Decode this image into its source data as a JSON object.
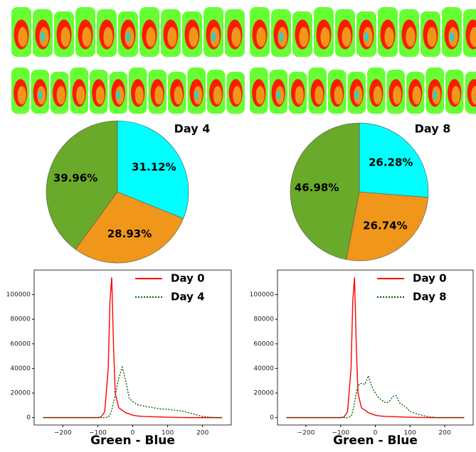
{
  "chart_data": [
    {
      "type": "pie",
      "title": "Day 4",
      "categories": [
        null,
        null,
        null
      ],
      "values": [
        31.12,
        28.93,
        39.96
      ],
      "value_labels": [
        "31.12%",
        "28.93%",
        "39.96%"
      ],
      "colors": [
        "#00ffff",
        "#f0961a",
        "#6aaa2a"
      ]
    },
    {
      "type": "pie",
      "title": "Day 8",
      "categories": [
        null,
        null,
        null
      ],
      "values": [
        26.28,
        26.74,
        46.98
      ],
      "value_labels": [
        "26.28%",
        "26.74%",
        "46.98%"
      ],
      "colors": [
        "#00ffff",
        "#f0961a",
        "#6aaa2a"
      ]
    },
    {
      "type": "line",
      "xlabel": "Green - Blue",
      "legend": "upper right",
      "x": [
        -256,
        -200,
        -150,
        -100,
        -90,
        -80,
        -70,
        -65,
        -60,
        -55,
        -50,
        -40,
        -30,
        -20,
        -10,
        0,
        10,
        20,
        30,
        40,
        50,
        60,
        70,
        80,
        90,
        100,
        120,
        140,
        160,
        180,
        200,
        220,
        240,
        256
      ],
      "series": [
        {
          "name": "Day 0",
          "color": "#ff0000",
          "linestyle": "solid",
          "values": [
            0,
            0,
            0,
            0,
            500,
            5000,
            40000,
            95000,
            114000,
            60000,
            20000,
            8000,
            6000,
            4000,
            3000,
            2000,
            1500,
            1200,
            1000,
            900,
            800,
            700,
            600,
            500,
            400,
            300,
            200,
            100,
            0,
            0,
            0,
            0,
            0,
            0
          ]
        },
        {
          "name": "Day 4",
          "color": "#006400",
          "linestyle": "dotted",
          "values": [
            0,
            0,
            0,
            0,
            0,
            0,
            500,
            2000,
            6000,
            12000,
            18000,
            32000,
            41000,
            30000,
            16000,
            13000,
            11000,
            10000,
            9500,
            9000,
            8500,
            8000,
            7500,
            7000,
            7000,
            6800,
            6000,
            5500,
            4000,
            2500,
            1000,
            300,
            0,
            0
          ]
        }
      ],
      "xlim": [
        -282,
        282
      ],
      "xticks": [
        {
          "value": -200,
          "label": "−200"
        },
        {
          "value": -100,
          "label": "−100"
        },
        0,
        100,
        200
      ],
      "ylim": [
        -6000,
        120000
      ],
      "yticks": [
        0,
        20000,
        40000,
        60000,
        80000,
        100000
      ]
    },
    {
      "type": "line",
      "xlabel": "Green - Blue",
      "legend": "upper right",
      "x": [
        -256,
        -200,
        -150,
        -100,
        -90,
        -80,
        -70,
        -65,
        -60,
        -55,
        -50,
        -40,
        -30,
        -20,
        -10,
        0,
        10,
        20,
        30,
        40,
        50,
        60,
        70,
        80,
        90,
        100,
        120,
        140,
        160,
        180,
        200,
        220,
        240,
        256
      ],
      "series": [
        {
          "name": "Day 0",
          "color": "#ff0000",
          "linestyle": "solid",
          "values": [
            0,
            0,
            0,
            0,
            500,
            5000,
            40000,
            95000,
            114000,
            60000,
            20000,
            8000,
            6000,
            4000,
            3000,
            2000,
            1500,
            1200,
            1000,
            900,
            800,
            700,
            600,
            500,
            400,
            300,
            200,
            100,
            0,
            0,
            0,
            0,
            0,
            0
          ]
        },
        {
          "name": "Day 8",
          "color": "#006400",
          "linestyle": "dotted",
          "values": [
            0,
            0,
            0,
            0,
            0,
            0,
            1000,
            5000,
            12000,
            20000,
            26000,
            28000,
            27000,
            34000,
            25000,
            20000,
            16000,
            14000,
            12000,
            13000,
            17000,
            18000,
            12000,
            10000,
            8000,
            5000,
            3000,
            1500,
            500,
            0,
            0,
            0,
            0,
            0
          ]
        }
      ],
      "xlim": [
        -282,
        282
      ],
      "xticks": [
        {
          "value": -200,
          "label": "−200"
        },
        {
          "value": -100,
          "label": "−100"
        },
        0,
        100,
        200
      ],
      "ylim": [
        -6000,
        120000
      ],
      "yticks": [
        0,
        20000,
        40000,
        60000,
        80000,
        100000
      ]
    }
  ]
}
